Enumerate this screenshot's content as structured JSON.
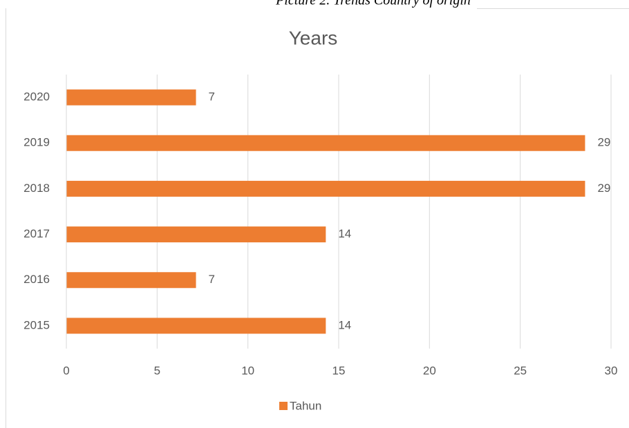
{
  "caption": "Picture 2. Trends Country of origin",
  "chart_data": {
    "type": "bar",
    "orientation": "horizontal",
    "title": "Years",
    "categories": [
      "2015",
      "2016",
      "2017",
      "2018",
      "2019",
      "2020"
    ],
    "series": [
      {
        "name": "Tahun",
        "color": "#ed7d31",
        "values": [
          14.29,
          7.14,
          14.29,
          28.57,
          28.57,
          7.14
        ],
        "value_labels": [
          "14",
          "7",
          "14",
          "29",
          "29",
          "7"
        ]
      }
    ],
    "xlim": [
      0,
      30
    ],
    "xticks": [
      0,
      5,
      10,
      15,
      20,
      25,
      30
    ],
    "grid": true,
    "legend": "bottom"
  }
}
